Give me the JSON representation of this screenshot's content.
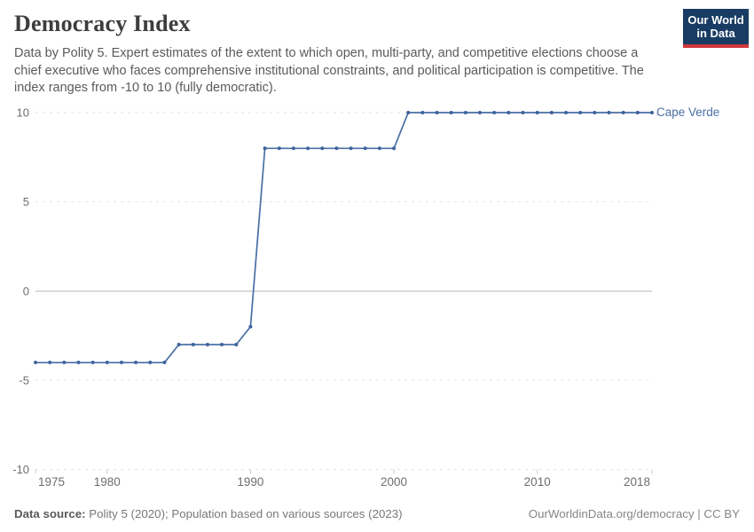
{
  "header": {
    "title": "Democracy Index",
    "subtitle_lines": [
      "Data by Polity 5. Expert estimates of the extent to which open, multi-party, and competitive elections choose a",
      "chief executive who faces comprehensive institutional constraints, and political participation is competitive. The",
      "index ranges from -10 to 10 (fully democratic)."
    ],
    "logo": {
      "line1": "Our World",
      "line2": "in Data",
      "bg_color": "#183c63",
      "accent_color": "#d0383e"
    }
  },
  "chart_data": {
    "type": "line",
    "title": "Democracy Index",
    "x": [
      1975,
      1976,
      1977,
      1978,
      1979,
      1980,
      1981,
      1982,
      1983,
      1984,
      1985,
      1986,
      1987,
      1988,
      1989,
      1990,
      1991,
      1992,
      1993,
      1994,
      1995,
      1996,
      1997,
      1998,
      1999,
      2000,
      2001,
      2002,
      2003,
      2004,
      2005,
      2006,
      2007,
      2008,
      2009,
      2010,
      2011,
      2012,
      2013,
      2014,
      2015,
      2016,
      2017,
      2018
    ],
    "series": [
      {
        "name": "Cape Verde",
        "color": "#4a6fa5",
        "point_color": "#3d629c",
        "values": [
          -4,
          -4,
          -4,
          -4,
          -4,
          -4,
          -4,
          -4,
          -4,
          -4,
          -3,
          -3,
          -3,
          -3,
          -3,
          -2,
          8,
          8,
          8,
          8,
          8,
          8,
          8,
          8,
          8,
          8,
          10,
          10,
          10,
          10,
          10,
          10,
          10,
          10,
          10,
          10,
          10,
          10,
          10,
          10,
          10,
          10,
          10,
          10
        ]
      }
    ],
    "xlim": [
      1975,
      2018
    ],
    "ylim": [
      -10,
      10
    ],
    "xticks": [
      1975,
      1980,
      1990,
      2000,
      2010,
      2018
    ],
    "yticks": [
      10,
      5,
      0,
      -5,
      -10
    ],
    "grid": "horizontal-dashed",
    "legend": "inline-end-label",
    "grid_color": "#e2e2e2",
    "zero_line_color": "#b8b8b8",
    "axis_text_color": "#6e6e6e",
    "tick_color": "#c9c9c9"
  },
  "footer": {
    "source_label": "Data source:",
    "source_text": " Polity 5 (2020); Population based on various sources (2023)",
    "credit": "OurWorldinData.org/democracy | CC BY"
  }
}
